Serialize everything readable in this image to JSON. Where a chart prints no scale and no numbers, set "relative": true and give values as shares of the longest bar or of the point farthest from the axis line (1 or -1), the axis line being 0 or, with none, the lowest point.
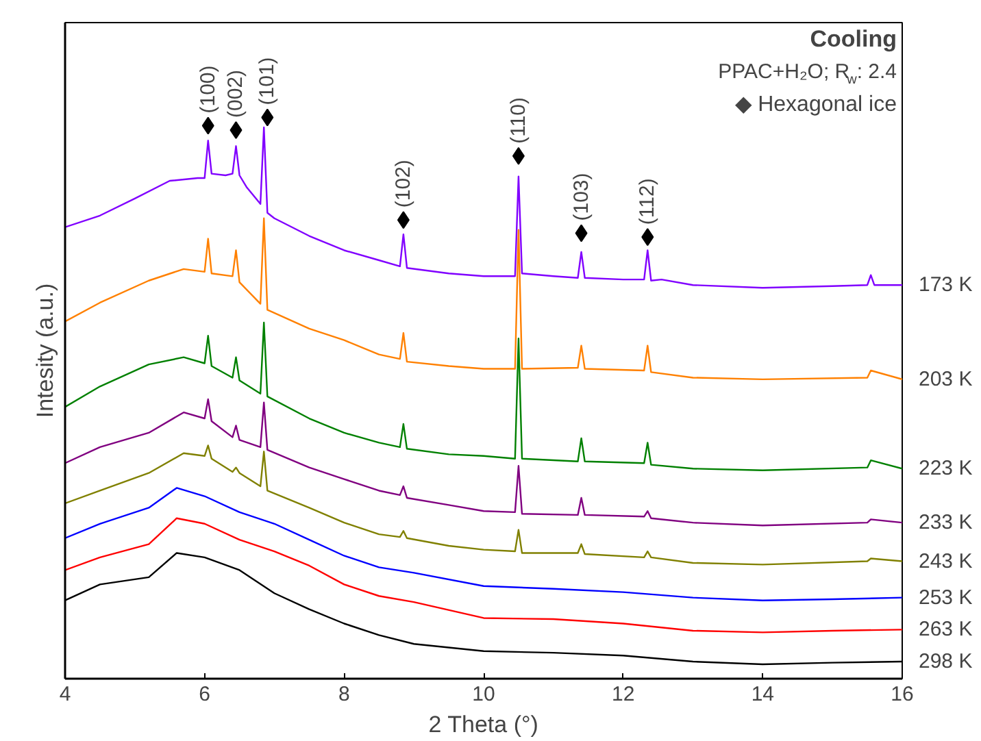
{
  "chart_data": {
    "type": "line",
    "xlabel": "2 Theta (°)",
    "ylabel": "Intesity (a.u.)",
    "relative": true,
    "xlim": [
      4,
      16
    ],
    "xticks": [
      4,
      6,
      8,
      10,
      12,
      14,
      16
    ],
    "tick_labels": "x",
    "grid": false,
    "legend": false,
    "marker": "none",
    "line_style": "solid",
    "series": [
      {
        "name": "173 K",
        "color": "#8000ff",
        "x": [
          4,
          4.5,
          5,
          5.5,
          5.9,
          6.0,
          6.05,
          6.1,
          6.3,
          6.4,
          6.45,
          6.5,
          6.6,
          6.8,
          6.85,
          6.9,
          7.0,
          7.5,
          8,
          8.5,
          8.8,
          8.85,
          8.9,
          9.5,
          10,
          10.45,
          10.5,
          10.55,
          11,
          11.35,
          11.4,
          11.45,
          12,
          12.3,
          12.35,
          12.4,
          12.55,
          13,
          14,
          15,
          15.5,
          15.55,
          15.6,
          16
        ],
        "values": [
          0.819,
          0.84,
          0.871,
          0.903,
          0.908,
          0.908,
          0.976,
          0.916,
          0.913,
          0.916,
          0.966,
          0.913,
          0.892,
          0.861,
          1.0,
          0.845,
          0.835,
          0.803,
          0.777,
          0.759,
          0.748,
          0.806,
          0.745,
          0.735,
          0.73,
          0.73,
          0.911,
          0.735,
          0.73,
          0.727,
          0.774,
          0.727,
          0.724,
          0.724,
          0.777,
          0.722,
          0.724,
          0.714,
          0.709,
          0.712,
          0.714,
          0.732,
          0.714,
          0.714
        ]
      },
      {
        "name": "203 K",
        "color": "#ff8000",
        "x": [
          4,
          4.5,
          5.2,
          5.7,
          6.0,
          6.05,
          6.1,
          6.4,
          6.45,
          6.5,
          6.8,
          6.85,
          6.9,
          7.5,
          8,
          8.5,
          8.8,
          8.85,
          8.9,
          9.5,
          10,
          10.45,
          10.5,
          10.55,
          11.35,
          11.4,
          11.45,
          12.3,
          12.35,
          12.4,
          13,
          14,
          15.5,
          15.55,
          16
        ],
        "values": [
          0.648,
          0.682,
          0.722,
          0.743,
          0.738,
          0.798,
          0.735,
          0.73,
          0.777,
          0.719,
          0.68,
          0.835,
          0.669,
          0.635,
          0.614,
          0.588,
          0.58,
          0.627,
          0.575,
          0.567,
          0.562,
          0.562,
          0.814,
          0.562,
          0.564,
          0.604,
          0.562,
          0.559,
          0.604,
          0.556,
          0.546,
          0.543,
          0.546,
          0.559,
          0.543
        ]
      },
      {
        "name": "223 K",
        "color": "#008000",
        "x": [
          4,
          4.5,
          5.2,
          5.7,
          6.0,
          6.05,
          6.1,
          6.4,
          6.45,
          6.5,
          6.8,
          6.85,
          6.9,
          7.5,
          8,
          8.5,
          8.8,
          8.85,
          8.9,
          9.5,
          10,
          10.45,
          10.5,
          10.55,
          11.35,
          11.4,
          11.45,
          12.3,
          12.35,
          12.4,
          13,
          14,
          15.5,
          15.55,
          16
        ],
        "values": [
          0.493,
          0.53,
          0.57,
          0.583,
          0.572,
          0.622,
          0.567,
          0.546,
          0.583,
          0.541,
          0.517,
          0.646,
          0.512,
          0.472,
          0.446,
          0.428,
          0.42,
          0.462,
          0.417,
          0.407,
          0.404,
          0.399,
          0.617,
          0.399,
          0.394,
          0.436,
          0.394,
          0.391,
          0.428,
          0.388,
          0.381,
          0.378,
          0.383,
          0.396,
          0.381
        ]
      },
      {
        "name": "233 K",
        "color": "#800080",
        "x": [
          4,
          4.5,
          5.2,
          5.7,
          6.0,
          6.05,
          6.1,
          6.4,
          6.45,
          6.5,
          6.8,
          6.85,
          6.9,
          7.5,
          8,
          8.5,
          8.8,
          8.85,
          8.9,
          9.5,
          10,
          10.45,
          10.5,
          10.55,
          11.35,
          11.4,
          11.45,
          12.3,
          12.35,
          12.4,
          13,
          14,
          15.5,
          15.55,
          16
        ],
        "values": [
          0.391,
          0.42,
          0.446,
          0.483,
          0.472,
          0.507,
          0.467,
          0.438,
          0.459,
          0.433,
          0.42,
          0.501,
          0.415,
          0.383,
          0.362,
          0.341,
          0.333,
          0.349,
          0.328,
          0.315,
          0.304,
          0.302,
          0.386,
          0.299,
          0.297,
          0.328,
          0.297,
          0.294,
          0.304,
          0.291,
          0.283,
          0.278,
          0.283,
          0.289,
          0.283
        ]
      },
      {
        "name": "243 K",
        "color": "#808000",
        "x": [
          4,
          4.5,
          5.2,
          5.7,
          6.0,
          6.05,
          6.1,
          6.4,
          6.45,
          6.5,
          6.8,
          6.85,
          6.9,
          7.5,
          8,
          8.5,
          8.8,
          8.85,
          8.9,
          9.5,
          10,
          10.45,
          10.5,
          10.55,
          11.35,
          11.4,
          11.45,
          12.3,
          12.35,
          12.4,
          13,
          14,
          15.5,
          15.55,
          16
        ],
        "values": [
          0.318,
          0.341,
          0.373,
          0.409,
          0.404,
          0.423,
          0.399,
          0.375,
          0.383,
          0.373,
          0.349,
          0.412,
          0.341,
          0.31,
          0.283,
          0.262,
          0.257,
          0.268,
          0.255,
          0.241,
          0.234,
          0.231,
          0.27,
          0.228,
          0.228,
          0.244,
          0.226,
          0.22,
          0.231,
          0.22,
          0.21,
          0.207,
          0.213,
          0.218,
          0.213
        ]
      },
      {
        "name": "253 K",
        "color": "#0000ff",
        "x": [
          4,
          4.5,
          5.2,
          5.6,
          6,
          6.5,
          7,
          7.5,
          8,
          8.5,
          9,
          10,
          11,
          12,
          13,
          14,
          15,
          16
        ],
        "values": [
          0.255,
          0.281,
          0.31,
          0.346,
          0.331,
          0.302,
          0.281,
          0.252,
          0.223,
          0.202,
          0.192,
          0.168,
          0.163,
          0.157,
          0.147,
          0.142,
          0.144,
          0.147
        ]
      },
      {
        "name": "263 K",
        "color": "#ff0000",
        "x": [
          4,
          4.5,
          5.2,
          5.6,
          6,
          6.5,
          7,
          7.5,
          8,
          8.5,
          9,
          10,
          11,
          12,
          13,
          14,
          15,
          16
        ],
        "values": [
          0.197,
          0.22,
          0.244,
          0.291,
          0.281,
          0.252,
          0.231,
          0.205,
          0.171,
          0.15,
          0.139,
          0.11,
          0.108,
          0.1,
          0.087,
          0.084,
          0.087,
          0.089
        ]
      },
      {
        "name": "298 K",
        "color": "#000000",
        "x": [
          4,
          4.5,
          5.2,
          5.6,
          6,
          6.5,
          7,
          7.5,
          8,
          8.5,
          9,
          10,
          11,
          12,
          13,
          14,
          15,
          16
        ],
        "values": [
          0.142,
          0.171,
          0.184,
          0.228,
          0.22,
          0.197,
          0.155,
          0.126,
          0.1,
          0.079,
          0.063,
          0.05,
          0.047,
          0.042,
          0.031,
          0.026,
          0.029,
          0.031
        ]
      }
    ],
    "annotations": [
      "Cooling",
      "PPAC+H₂O; R$_{w}$: 2.4",
      "◆ Hexagonal ice",
      {
        "text": "(100)",
        "x": 6.05,
        "y": 1.003
      },
      {
        "text": "(002)",
        "x": 6.45,
        "y": 0.995
      },
      {
        "text": "(101)",
        "x": 6.9,
        "y": 1.018
      },
      {
        "text": "(102)",
        "x": 8.85,
        "y": 0.832
      },
      {
        "text": "(110)",
        "x": 10.5,
        "y": 0.948
      },
      {
        "text": "(103)",
        "x": 11.4,
        "y": 0.808
      },
      {
        "text": "(112)",
        "x": 12.35,
        "y": 0.801
      }
    ]
  }
}
